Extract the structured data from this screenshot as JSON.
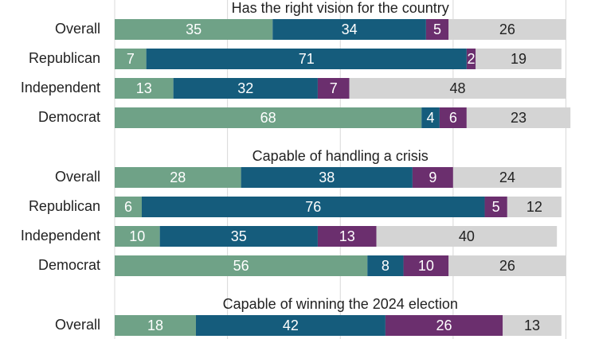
{
  "chart_data": {
    "type": "bar",
    "orientation": "horizontal",
    "stacked": true,
    "xlim": [
      0,
      100
    ],
    "grid": true,
    "colors": [
      "#6fa287",
      "#155c7c",
      "#6b2f6e",
      "#d4d4d4"
    ],
    "value_label_colors": [
      "#ffffff",
      "#ffffff",
      "#ffffff",
      "#222222"
    ],
    "panels": [
      {
        "title": "Has the right vision for the country",
        "rows": [
          {
            "label": "Overall",
            "values": [
              35,
              34,
              5,
              26
            ]
          },
          {
            "label": "Republican",
            "values": [
              7,
              71,
              2,
              19
            ]
          },
          {
            "label": "Independent",
            "values": [
              13,
              32,
              7,
              48
            ]
          },
          {
            "label": "Democrat",
            "values": [
              68,
              4,
              6,
              23
            ]
          }
        ]
      },
      {
        "title": "Capable of handling a crisis",
        "rows": [
          {
            "label": "Overall",
            "values": [
              28,
              38,
              9,
              24
            ]
          },
          {
            "label": "Republican",
            "values": [
              6,
              76,
              5,
              12
            ]
          },
          {
            "label": "Independent",
            "values": [
              10,
              35,
              13,
              40
            ]
          },
          {
            "label": "Democrat",
            "values": [
              56,
              8,
              10,
              26
            ]
          }
        ]
      },
      {
        "title": "Capable of winning the 2024 election",
        "rows": [
          {
            "label": "Overall",
            "values": [
              18,
              42,
              26,
              13
            ]
          }
        ]
      }
    ]
  }
}
